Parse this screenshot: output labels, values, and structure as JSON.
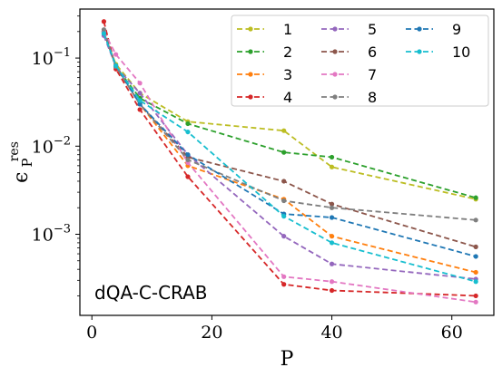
{
  "chart_data": {
    "type": "line",
    "title": "",
    "annotation": "dQA-C-CRAB",
    "xlabel": "P",
    "ylabel": {
      "base": "ϵ",
      "sup": "res",
      "sub": "P"
    },
    "xlim": [
      -2,
      67
    ],
    "ylim": [
      0.00012,
      0.36
    ],
    "yscale": "log",
    "xticks": [
      0,
      20,
      40,
      60
    ],
    "xtick_labels": [
      "0",
      "20",
      "40",
      "60"
    ],
    "yticks": [
      0.001,
      0.01,
      0.1
    ],
    "ytick_labels": [
      {
        "base": "10",
        "exp": "−3"
      },
      {
        "base": "10",
        "exp": "−2"
      },
      {
        "base": "10",
        "exp": "−1"
      }
    ],
    "grid": false,
    "legend": {
      "placement": "top-right",
      "columns": 3
    },
    "x": [
      2,
      4,
      8,
      16,
      32,
      40,
      64
    ],
    "series": [
      {
        "name": "1",
        "color": "#bcbd22",
        "values": [
          0.19,
          0.085,
          0.04,
          0.019,
          0.015,
          0.0058,
          0.0025
        ]
      },
      {
        "name": "2",
        "color": "#2ca02c",
        "values": [
          0.2,
          0.08,
          0.035,
          0.018,
          0.0085,
          0.0075,
          0.0026
        ]
      },
      {
        "name": "3",
        "color": "#ff7f0e",
        "values": [
          0.2,
          0.08,
          0.03,
          0.006,
          0.0025,
          0.00095,
          0.00037
        ]
      },
      {
        "name": "4",
        "color": "#d62728",
        "values": [
          0.26,
          0.075,
          0.026,
          0.0045,
          0.00027,
          0.00023,
          0.0002
        ]
      },
      {
        "name": "5",
        "color": "#9467bd",
        "values": [
          0.18,
          0.08,
          0.04,
          0.008,
          0.00095,
          0.00046,
          0.00031
        ]
      },
      {
        "name": "6",
        "color": "#8c564b",
        "values": [
          0.2,
          0.08,
          0.03,
          0.0075,
          0.004,
          0.0022,
          0.00072
        ]
      },
      {
        "name": "7",
        "color": "#e377c2",
        "values": [
          0.2,
          0.11,
          0.052,
          0.0065,
          0.00033,
          0.00029,
          0.00017
        ]
      },
      {
        "name": "8",
        "color": "#7f7f7f",
        "values": [
          0.21,
          0.08,
          0.03,
          0.007,
          0.0024,
          0.002,
          0.00145
        ]
      },
      {
        "name": "9",
        "color": "#1f77b4",
        "values": [
          0.19,
          0.082,
          0.03,
          0.008,
          0.0017,
          0.00155,
          0.00056
        ]
      },
      {
        "name": "10",
        "color": "#17becf",
        "values": [
          0.19,
          0.082,
          0.033,
          0.0145,
          0.0016,
          0.0008,
          0.00029
        ]
      }
    ]
  }
}
